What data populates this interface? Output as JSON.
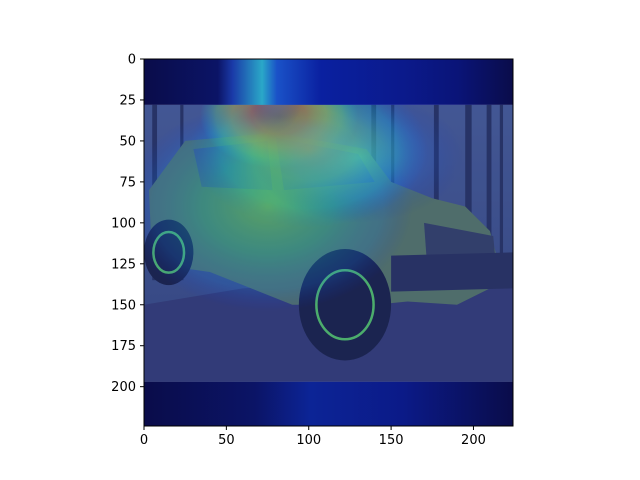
{
  "chart_data": {
    "type": "heatmap",
    "title": "",
    "xlabel": "",
    "ylabel": "",
    "xlim": [
      0,
      224
    ],
    "ylim": [
      224,
      0
    ],
    "x_ticks": [
      0,
      50,
      100,
      150,
      200
    ],
    "y_ticks": [
      0,
      25,
      50,
      75,
      100,
      125,
      150,
      175,
      200
    ],
    "colormap": "jet",
    "image_content": "green off-road vehicle photo with heatmap overlay",
    "hotspots": [
      {
        "x": 82,
        "y": 35,
        "rx": 30,
        "ry": 20,
        "intensity": 1.0
      },
      {
        "x": 100,
        "y": 55,
        "rx": 45,
        "ry": 30,
        "intensity": 0.85
      },
      {
        "x": 75,
        "y": 90,
        "rx": 55,
        "ry": 40,
        "intensity": 0.6
      },
      {
        "x": 130,
        "y": 60,
        "rx": 40,
        "ry": 25,
        "intensity": 0.55
      },
      {
        "x": 80,
        "y": 10,
        "rx": 12,
        "ry": 22,
        "intensity": 0.5
      }
    ],
    "colors": {
      "bar_dark": "#0b0c55",
      "bar_blue": "#0b2a8a",
      "photo_bg": "#3d4a6a",
      "vehicle": "#5a7050",
      "ground": "#3a3e68"
    }
  }
}
